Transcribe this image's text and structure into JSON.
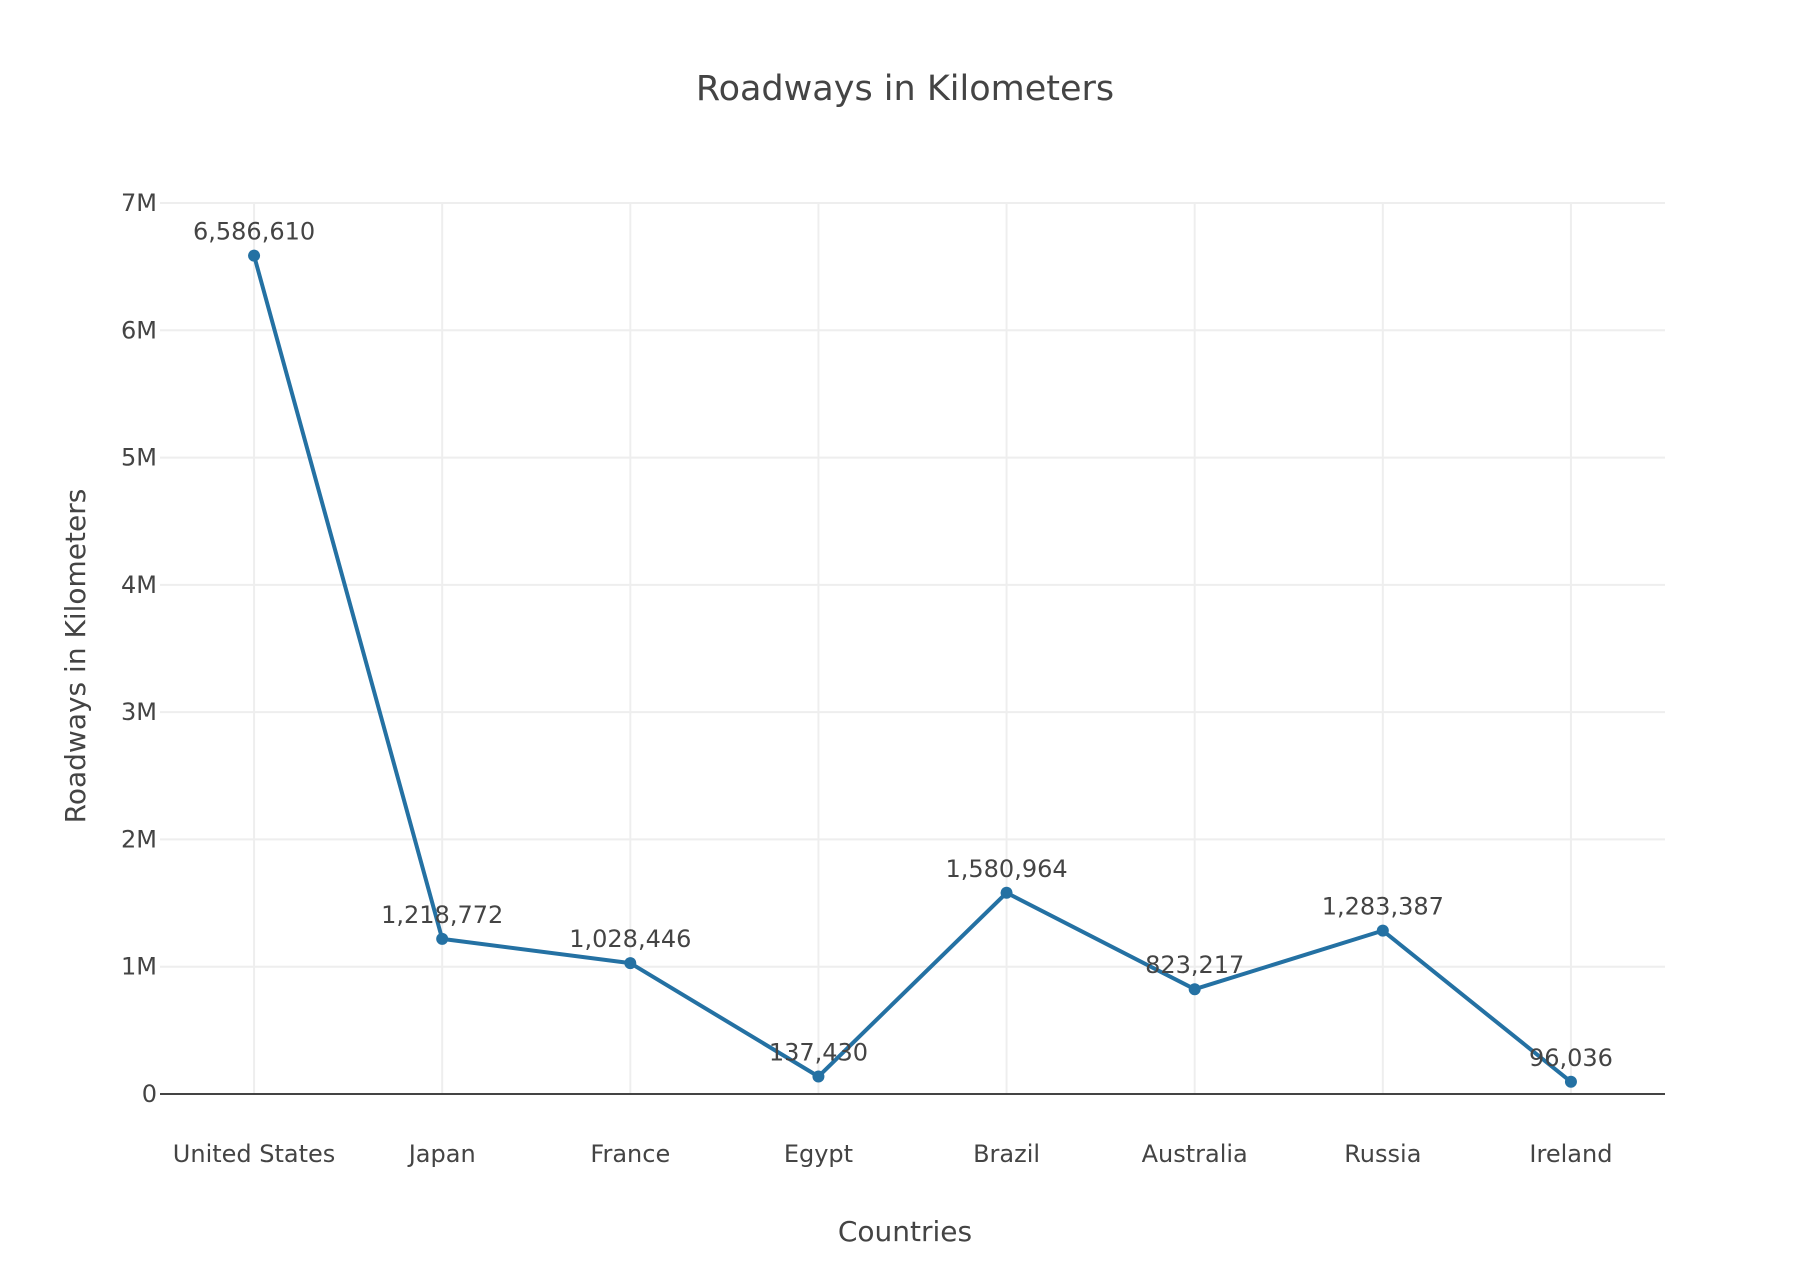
{
  "chart_data": {
    "type": "line",
    "title": "Roadways in Kilometers",
    "xlabel": "Countries",
    "ylabel": "Roadways in Kilometers",
    "categories": [
      "United States",
      "Japan",
      "France",
      "Egypt",
      "Brazil",
      "Australia",
      "Russia",
      "Ireland"
    ],
    "series": [
      {
        "values": [
          6586610,
          1218772,
          1028446,
          137430,
          1580964,
          823217,
          1283387,
          96036
        ],
        "labels": [
          "6,586,610",
          "1,218,772",
          "1,028,446",
          "137,430",
          "1,580,964",
          "823,217",
          "1,283,387",
          "96,036"
        ],
        "color": "#2471a3"
      }
    ],
    "ylim": [
      0,
      7000000
    ],
    "yticks": [
      0,
      1000000,
      2000000,
      3000000,
      4000000,
      5000000,
      6000000,
      7000000
    ],
    "ytick_labels": [
      "0",
      "1M",
      "2M",
      "3M",
      "4M",
      "5M",
      "6M",
      "7M"
    ],
    "grid": true,
    "legend": "none"
  }
}
